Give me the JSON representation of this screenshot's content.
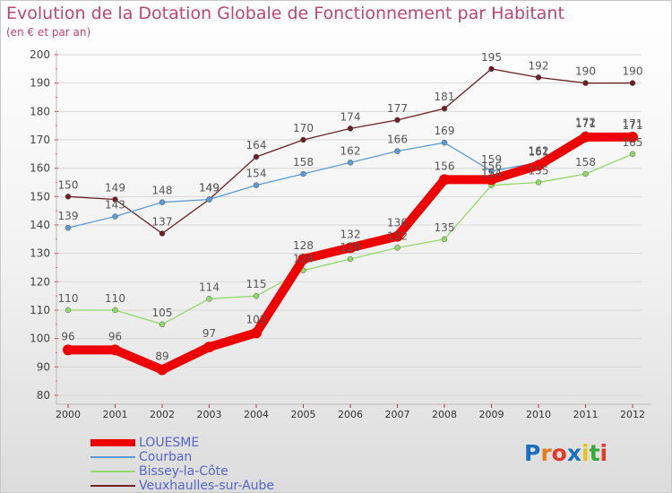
{
  "header": {
    "title": "Evolution de la Dotation Globale de Fonctionnement par Habitant",
    "subtitle": "(en € et par an)"
  },
  "logo": {
    "letters": [
      "P",
      "r",
      "o",
      "x",
      "i",
      "t",
      "i"
    ],
    "colors": [
      "#1a6fc0",
      "#e87b1a",
      "#e23a2a",
      "#1a6fc0",
      "#e8c01a",
      "#39a83a",
      "#e23a2a"
    ]
  },
  "chart_data": {
    "type": "line",
    "title": "Evolution de la Dotation Globale de Fonctionnement par Habitant",
    "subtitle": "(en € et par an)",
    "xlabel": "",
    "ylabel": "",
    "categories": [
      "2000",
      "2001",
      "2002",
      "2003",
      "2004",
      "2005",
      "2006",
      "2007",
      "2008",
      "2009",
      "2010",
      "2011",
      "2012"
    ],
    "ylim": [
      80,
      200
    ],
    "yticks": [
      80,
      90,
      100,
      110,
      120,
      130,
      140,
      150,
      160,
      170,
      180,
      190,
      200
    ],
    "grid": true,
    "legend_position": "bottom-left",
    "series": [
      {
        "name": "Veuxhaulles-sur-Aube",
        "color": "#6e1f24",
        "values": [
          150,
          149,
          137,
          149,
          164,
          170,
          174,
          177,
          181,
          195,
          192,
          190,
          190
        ]
      },
      {
        "name": "Bissey-la-Côte",
        "color": "#93d86b",
        "values": [
          110,
          110,
          105,
          114,
          115,
          124,
          128,
          132,
          135,
          154,
          155,
          158,
          165
        ]
      },
      {
        "name": "Courban",
        "color": "#5b9bd5",
        "values": [
          139,
          143,
          148,
          149,
          154,
          158,
          162,
          166,
          169,
          159,
          162,
          172,
          171
        ]
      },
      {
        "name": "LOUESME",
        "color": "#ee0000",
        "values": [
          96,
          96,
          89,
          97,
          102,
          128,
          132,
          136,
          156,
          156,
          161,
          171,
          171
        ]
      }
    ],
    "legend_order": [
      "LOUESME",
      "Courban",
      "Bissey-la-Côte",
      "Veuxhaulles-sur-Aube"
    ]
  }
}
